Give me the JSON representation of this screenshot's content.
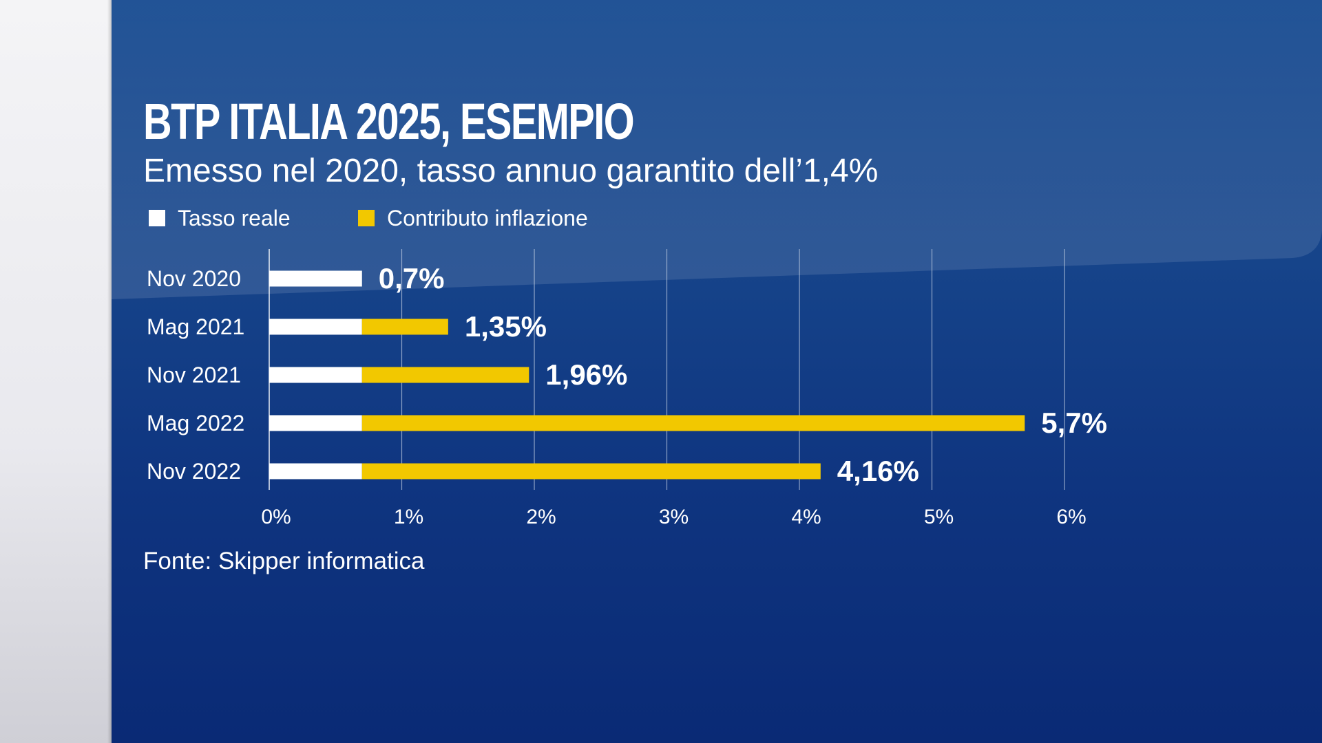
{
  "colors": {
    "real": "#ffffff",
    "inflation": "#f2c800",
    "grid": "#c7d3e6",
    "background": "#12408a"
  },
  "legend": {
    "real_label": "Tasso reale",
    "inflation_label": "Contributo inflazione"
  },
  "source": "Fonte: Skipper informatica",
  "chart_data": {
    "type": "bar",
    "orientation": "horizontal",
    "stacked": true,
    "title": "BTP ITALIA 2025, ESEMPIO",
    "subtitle": "Emesso nel 2020, tasso annuo garantito dell’1,4%",
    "categories": [
      "Nov 2020",
      "Mag 2021",
      "Nov 2021",
      "Mag 2022",
      "Nov 2022"
    ],
    "series": [
      {
        "name": "Tasso reale",
        "values": [
          0.7,
          0.7,
          0.7,
          0.7,
          0.7
        ]
      },
      {
        "name": "Contributo inflazione",
        "values": [
          0,
          0.65,
          1.26,
          5.0,
          3.46
        ]
      }
    ],
    "totals": [
      "0,7%",
      "1,35%",
      "1,96%",
      "5,7%",
      "4,16%"
    ],
    "xticks": [
      "0%",
      "1%",
      "2%",
      "3%",
      "4%",
      "5%",
      "6%"
    ],
    "xlim": [
      0,
      6
    ],
    "grid": true,
    "legend_position": "top-left"
  }
}
